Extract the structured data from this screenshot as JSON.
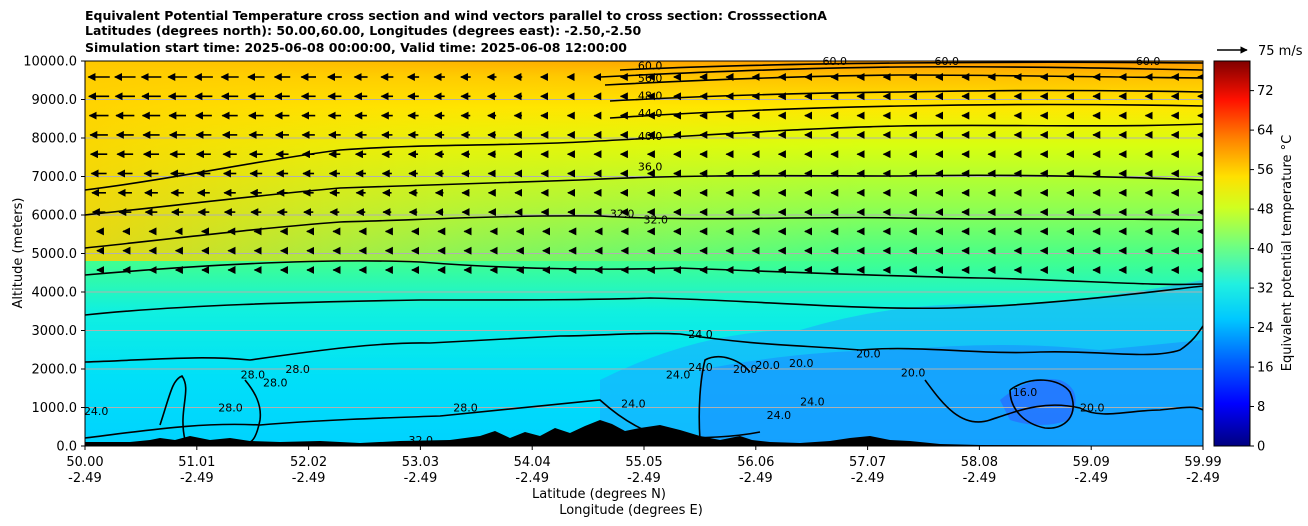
{
  "chart_data": {
    "type": "contour",
    "title_lines": [
      "Equivalent Potential Temperature cross section and wind vectors parallel to cross section: CrosssectionA",
      "Latitudes (degrees north): 50.00,60.00, Longitudes (degrees east): -2.50,-2.50",
      "Simulation start time: 2025-06-08 00:00:00, Valid time: 2025-06-08 12:00:00"
    ],
    "xlabel_line1": "Latitude (degrees N)",
    "xlabel_line2": "Longitude (degrees E)",
    "ylabel": "Altitude (meters)",
    "x_ticks": [
      {
        "lat": "50.00",
        "lon": "-2.49"
      },
      {
        "lat": "51.01",
        "lon": "-2.49"
      },
      {
        "lat": "52.02",
        "lon": "-2.49"
      },
      {
        "lat": "53.03",
        "lon": "-2.49"
      },
      {
        "lat": "54.04",
        "lon": "-2.49"
      },
      {
        "lat": "55.05",
        "lon": "-2.49"
      },
      {
        "lat": "56.06",
        "lon": "-2.49"
      },
      {
        "lat": "57.07",
        "lon": "-2.49"
      },
      {
        "lat": "58.08",
        "lon": "-2.49"
      },
      {
        "lat": "59.09",
        "lon": "-2.49"
      },
      {
        "lat": "59.99",
        "lon": "-2.49"
      }
    ],
    "y_ticks": [
      "0.0",
      "1000.0",
      "2000.0",
      "3000.0",
      "4000.0",
      "5000.0",
      "6000.0",
      "7000.0",
      "8000.0",
      "9000.0",
      "10000.0"
    ],
    "ylim": [
      0,
      10000
    ],
    "xlim": [
      50.0,
      59.99
    ],
    "colorbar": {
      "label": "Equivalent potential temperature °C",
      "ticks": [
        "0",
        "8",
        "16",
        "24",
        "32",
        "40",
        "48",
        "56",
        "64",
        "72"
      ],
      "range": [
        0,
        78
      ]
    },
    "quiver_key": "75 m/s",
    "contour_labels": [
      {
        "text": "60.0",
        "x": 55.05,
        "y": 9780
      },
      {
        "text": "56.0",
        "x": 55.05,
        "y": 9460
      },
      {
        "text": "48.0",
        "x": 55.05,
        "y": 9000
      },
      {
        "text": "44.0",
        "x": 55.05,
        "y": 8550
      },
      {
        "text": "40.0",
        "x": 55.05,
        "y": 7950
      },
      {
        "text": "36.0",
        "x": 55.05,
        "y": 7150
      },
      {
        "text": "32.0",
        "x": 54.8,
        "y": 5930
      },
      {
        "text": "32.0",
        "x": 55.1,
        "y": 5780
      },
      {
        "text": "60.0",
        "x": 56.7,
        "y": 9900
      },
      {
        "text": "60.0",
        "x": 57.7,
        "y": 9900
      },
      {
        "text": "60.0",
        "x": 59.5,
        "y": 9900
      },
      {
        "text": "28.0",
        "x": 51.5,
        "y": 1750
      },
      {
        "text": "28.0",
        "x": 51.7,
        "y": 1550
      },
      {
        "text": "28.0",
        "x": 51.9,
        "y": 1900
      },
      {
        "text": "28.0",
        "x": 51.3,
        "y": 900
      },
      {
        "text": "24.0",
        "x": 50.1,
        "y": 800
      },
      {
        "text": "28.0",
        "x": 53.4,
        "y": 900
      },
      {
        "text": "32.0",
        "x": 53.0,
        "y": 50
      },
      {
        "text": "24.0",
        "x": 55.5,
        "y": 2800
      },
      {
        "text": "24.0",
        "x": 54.9,
        "y": 1000
      },
      {
        "text": "24.0",
        "x": 55.3,
        "y": 1750
      },
      {
        "text": "24.0",
        "x": 55.5,
        "y": 1950
      },
      {
        "text": "20.0",
        "x": 55.9,
        "y": 1900
      },
      {
        "text": "20.0",
        "x": 56.1,
        "y": 2000
      },
      {
        "text": "20.0",
        "x": 56.4,
        "y": 2050
      },
      {
        "text": "24.0",
        "x": 56.2,
        "y": 700
      },
      {
        "text": "24.0",
        "x": 56.5,
        "y": 1050
      },
      {
        "text": "20.0",
        "x": 57.0,
        "y": 2300
      },
      {
        "text": "20.0",
        "x": 57.4,
        "y": 1800
      },
      {
        "text": "16.0",
        "x": 58.4,
        "y": 1300
      },
      {
        "text": "20.0",
        "x": 59.0,
        "y": 900
      }
    ],
    "colors": {
      "terrain": "#000000",
      "contour_line": "#000000",
      "grid": "#b0b0b0"
    }
  }
}
